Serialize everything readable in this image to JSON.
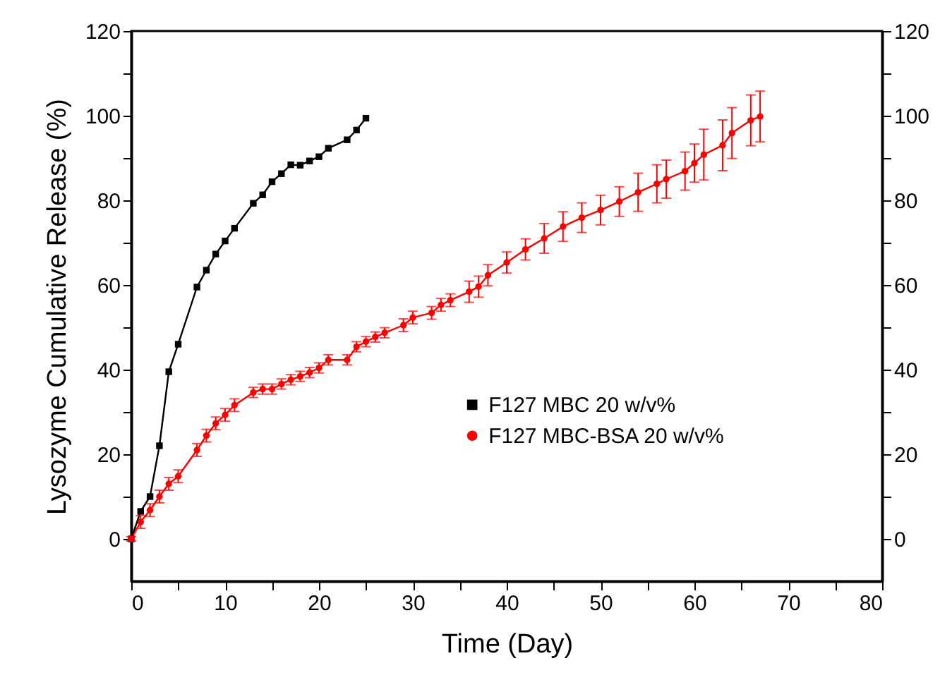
{
  "chart_data": {
    "type": "line",
    "xlabel": "Time (Day)",
    "ylabel": "Lysozyme Cumulative Release (%)",
    "xlim": [
      0,
      80
    ],
    "xticks": [
      0,
      {
        "value": 5,
        "label": null
      },
      10,
      {
        "value": 15,
        "label": null
      },
      20,
      {
        "value": 25,
        "label": null
      },
      30,
      {
        "value": 35,
        "label": null
      },
      40,
      {
        "value": 45,
        "label": null
      },
      50,
      {
        "value": 55,
        "label": null
      },
      60,
      {
        "value": 65,
        "label": null
      },
      70,
      {
        "value": 75,
        "label": null
      },
      80
    ],
    "ylim": [
      -10,
      120
    ],
    "yticks": [
      0,
      {
        "value": 10,
        "label": null
      },
      20,
      {
        "value": 30,
        "label": null
      },
      40,
      {
        "value": 50,
        "label": null
      },
      60,
      {
        "value": 70,
        "label": null
      },
      80,
      {
        "value": 90,
        "label": null
      },
      100,
      {
        "value": 110,
        "label": null
      },
      120
    ],
    "y2lim": [
      -10,
      120
    ],
    "y2ticks": [
      0,
      {
        "value": 10,
        "label": null
      },
      20,
      {
        "value": 30,
        "label": null
      },
      40,
      {
        "value": 50,
        "label": null
      },
      60,
      {
        "value": 70,
        "label": null
      },
      80,
      {
        "value": 90,
        "label": null
      },
      100,
      {
        "value": 110,
        "label": null
      },
      120
    ],
    "legend": "right",
    "grid": false,
    "series": [
      {
        "name": "F127 MBC 20 w/v%",
        "color": "#000000",
        "marker": "square",
        "x": [
          0,
          1,
          2,
          3,
          4,
          5,
          7,
          8,
          9,
          10,
          11,
          13,
          14,
          15,
          16,
          17,
          18,
          19,
          20,
          21,
          23,
          24,
          25
        ],
        "values": [
          0,
          6.5,
          10,
          22,
          39.5,
          46,
          59.5,
          63.5,
          67.3,
          70.4,
          73.4,
          79.3,
          81.3,
          84.4,
          86.3,
          88.4,
          88.3,
          89.3,
          90.3,
          92.3,
          94.3,
          96.6,
          99.4
        ]
      },
      {
        "name": "F127 MBC-BSA 20 w/v%",
        "color": "#ff0000",
        "marker": "circle",
        "x": [
          0,
          1,
          2,
          3,
          4,
          5,
          7,
          8,
          9,
          10,
          11,
          13,
          14,
          15,
          16,
          17,
          18,
          19,
          20,
          21,
          23,
          24,
          25,
          26,
          27,
          29,
          30,
          32,
          33,
          34,
          36,
          37,
          38,
          40,
          42,
          44,
          46,
          48,
          50,
          52,
          54,
          56,
          57,
          59,
          60,
          61,
          63,
          64,
          66,
          67
        ],
        "values": [
          0,
          4,
          6.8,
          10,
          13,
          14.8,
          21,
          24.4,
          27.3,
          29.3,
          31.6,
          34.6,
          35.4,
          35.4,
          36.6,
          37.6,
          38.4,
          39.3,
          40.4,
          42.3,
          42.3,
          45.4,
          46.6,
          47.7,
          48.7,
          50.5,
          52.3,
          53.4,
          55.3,
          56.4,
          58.4,
          59.6,
          62.3,
          65.3,
          68.4,
          71,
          73.8,
          75.9,
          77.7,
          79.7,
          81.9,
          83.9,
          85,
          86.9,
          88.8,
          90.8,
          93,
          95.9,
          98.9,
          99.8
        ],
        "errors": [
          0.5,
          1.5,
          1.5,
          1.5,
          1.5,
          1.5,
          1.5,
          1.5,
          1.5,
          1.5,
          1.5,
          1.2,
          1.2,
          1.2,
          1.2,
          1.2,
          1.2,
          1.2,
          1.2,
          1.2,
          1.2,
          1.2,
          1.2,
          1.2,
          1.2,
          1.5,
          1.5,
          1.5,
          1.5,
          1.5,
          2.5,
          2.5,
          2.5,
          2.5,
          2.5,
          3.5,
          3.5,
          3.5,
          3.5,
          3.5,
          4.5,
          4.5,
          4.5,
          4.5,
          4.5,
          6,
          6,
          6,
          6,
          6
        ]
      }
    ]
  }
}
